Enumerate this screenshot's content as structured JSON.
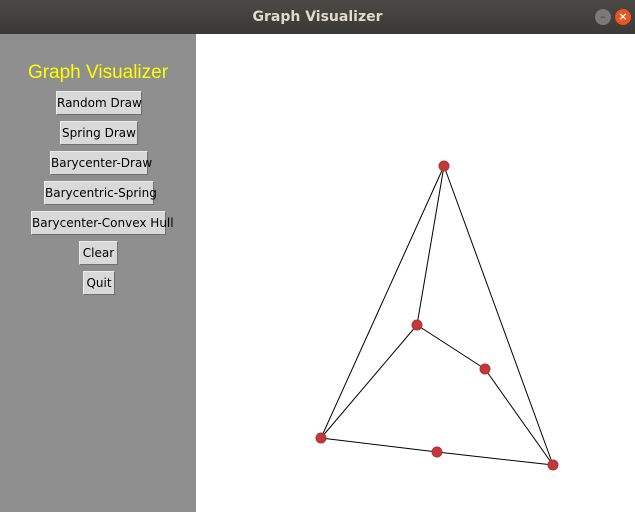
{
  "window": {
    "title": "Graph Visualizer"
  },
  "sidebar": {
    "title": "Graph Visualizer",
    "title_color": "#ffff00",
    "background": "#8f8f8f",
    "buttons": [
      {
        "label": "Random Draw"
      },
      {
        "label": "Spring Draw"
      },
      {
        "label": "Barycenter-Draw"
      },
      {
        "label": "Barycentric-Spring"
      },
      {
        "label": "Barycenter-Convex Hull"
      },
      {
        "label": "Clear"
      },
      {
        "label": "Quit"
      }
    ]
  },
  "graph": {
    "node_color": "#c0393b",
    "nodes": [
      {
        "id": "A"
      },
      {
        "id": "B"
      },
      {
        "id": "C"
      },
      {
        "id": "D"
      },
      {
        "id": "E"
      },
      {
        "id": "F"
      }
    ],
    "edges": [
      [
        "A",
        "B"
      ],
      [
        "A",
        "D"
      ],
      [
        "A",
        "F"
      ],
      [
        "B",
        "C"
      ],
      [
        "B",
        "D"
      ],
      [
        "C",
        "F"
      ],
      [
        "D",
        "E"
      ],
      [
        "E",
        "F"
      ]
    ]
  }
}
